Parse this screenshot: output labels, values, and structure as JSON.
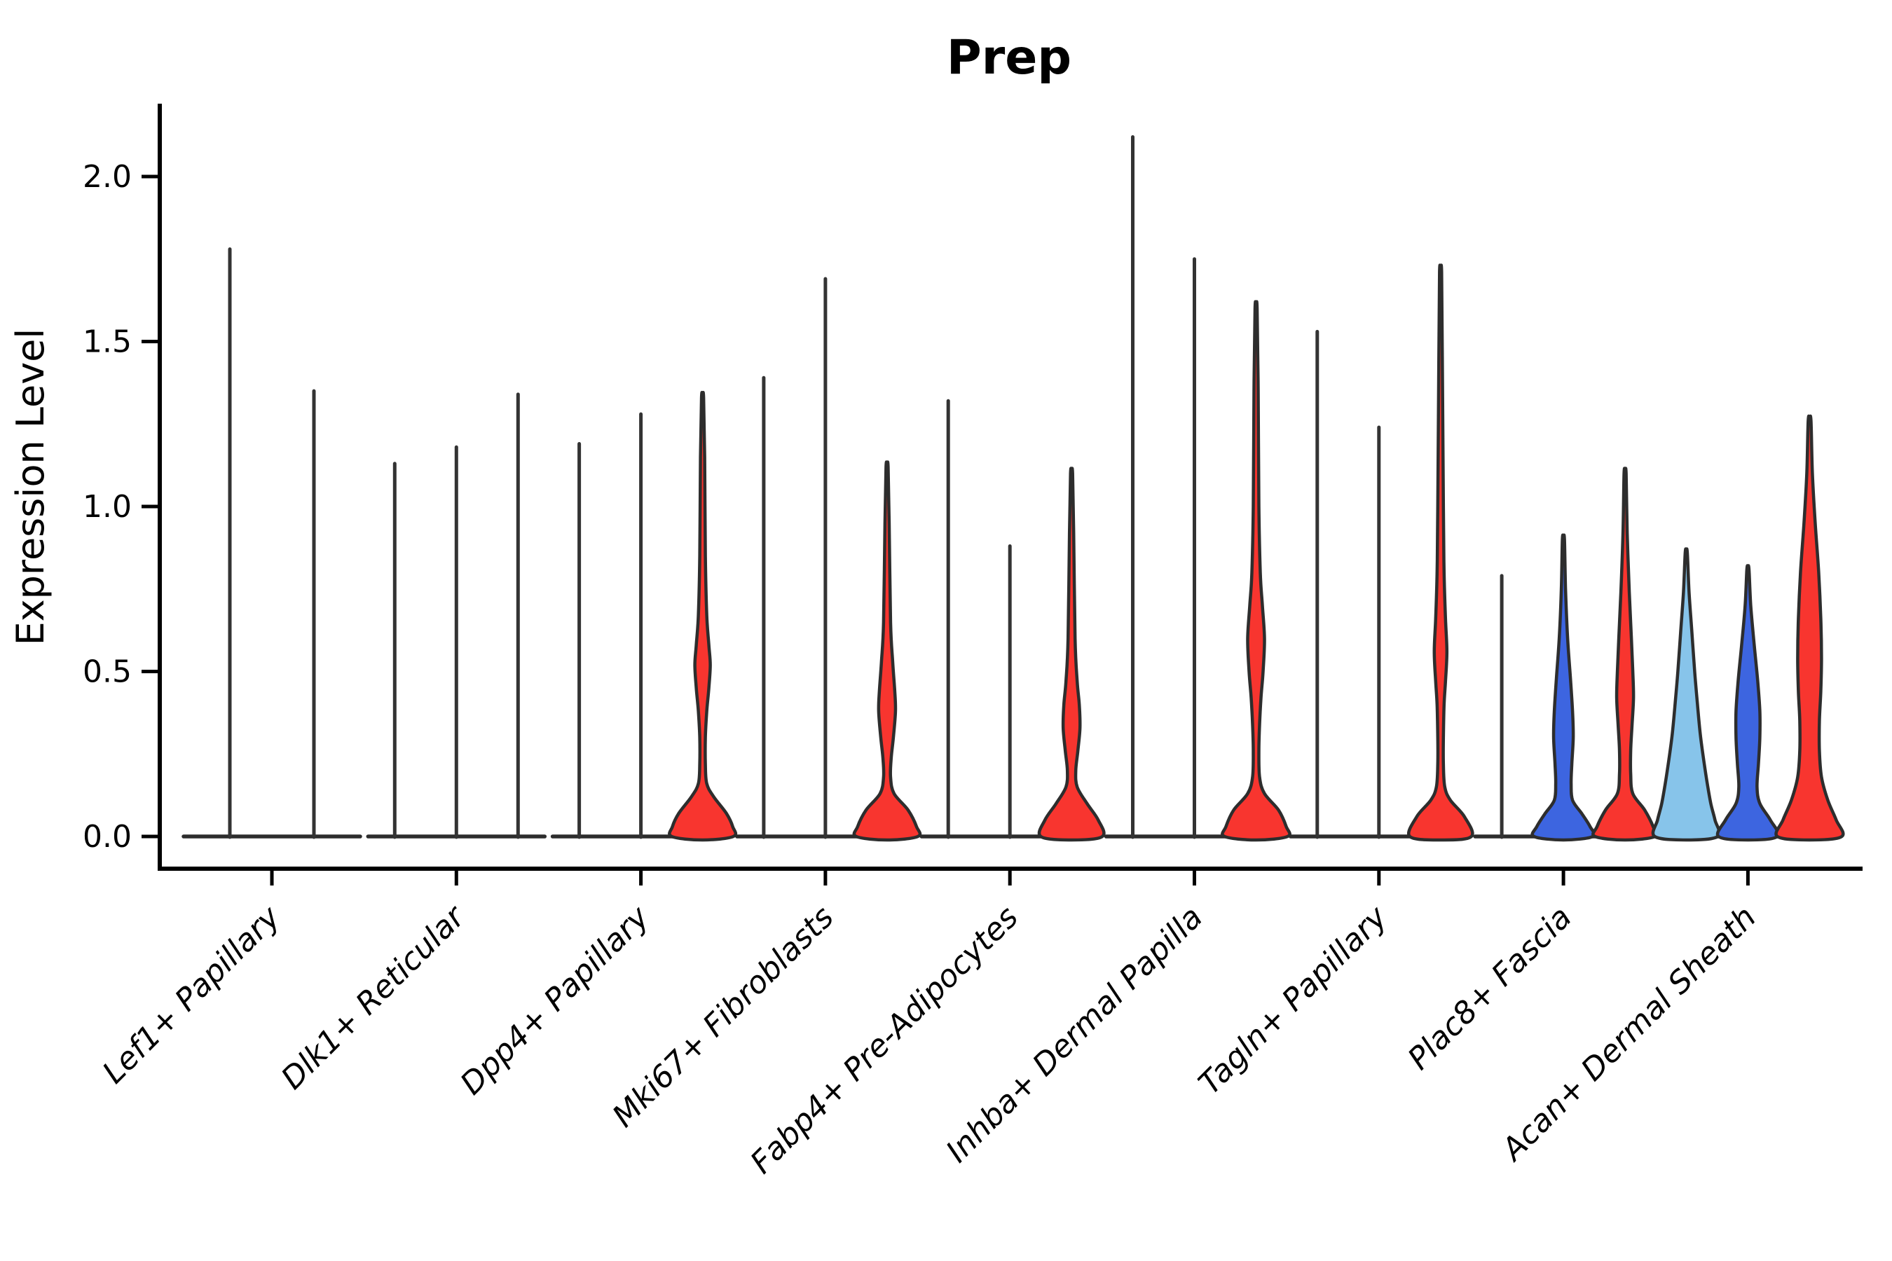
{
  "chart_data": {
    "type": "violin",
    "title": "Prep",
    "ylabel": "Expression Level",
    "xlabel": "",
    "ylim": [
      -0.08,
      2.22
    ],
    "yticks": [
      0.0,
      0.5,
      1.0,
      1.5,
      2.0
    ],
    "ytick_labels": [
      "0.0",
      "0.5",
      "1.0",
      "1.5",
      "2.0"
    ],
    "grid": false,
    "legend_position": "none",
    "x_tick_label_rotation_deg": 45,
    "categories": [
      "Lef1+ Papillary",
      "Dlk1+ Reticular",
      "Dpp4+ Papillary",
      "Mki67+ Fibroblasts",
      "Fabp4+ Pre-Adipocytes",
      "Inhba+ Dermal Papilla",
      "Tagln+ Papillary",
      "Plac8+ Fascia",
      "Acan+ Dermal Sheath"
    ],
    "colors": {
      "red": "#F8352F",
      "blue": "#3D65E0",
      "lightblue": "#87C4EA",
      "spike": "#333333",
      "outline": "#2D2D2D",
      "axis": "#000000",
      "text": "#000000",
      "background": "#ffffff"
    },
    "groups": [
      {
        "category": "Lef1+ Papillary",
        "violins": [
          {
            "split": 1,
            "type": "spike",
            "color": "spike",
            "max": 1.78
          },
          {
            "split": 2,
            "type": "spike",
            "color": "spike",
            "max": 1.35
          }
        ]
      },
      {
        "category": "Dlk1+ Reticular",
        "violins": [
          {
            "split": 1,
            "type": "spike",
            "color": "spike",
            "max": 1.13
          },
          {
            "split": 2,
            "type": "spike",
            "color": "spike",
            "max": 1.18
          },
          {
            "split": 3,
            "type": "spike",
            "color": "spike",
            "max": 1.34
          }
        ]
      },
      {
        "category": "Dpp4+ Papillary",
        "violins": [
          {
            "split": 1,
            "type": "spike",
            "color": "spike",
            "max": 1.19
          },
          {
            "split": 2,
            "type": "spike",
            "color": "spike",
            "max": 1.28
          },
          {
            "split": 3,
            "type": "violin",
            "color": "red",
            "max": 1.33,
            "profile": [
              [
                1.33,
                1.5
              ],
              [
                1.15,
                3
              ],
              [
                0.85,
                4
              ],
              [
                0.67,
                6
              ],
              [
                0.58,
                9
              ],
              [
                0.52,
                11
              ],
              [
                0.45,
                9
              ],
              [
                0.38,
                6
              ],
              [
                0.3,
                4
              ],
              [
                0.22,
                4
              ],
              [
                0.16,
                6
              ],
              [
                0.12,
                16
              ],
              [
                0.07,
                34
              ],
              [
                0.03,
                43
              ],
              [
                0,
                44
              ]
            ]
          }
        ]
      },
      {
        "category": "Mki67+ Fibroblasts",
        "violins": [
          {
            "split": 1,
            "type": "spike",
            "color": "spike",
            "max": 1.39
          },
          {
            "split": 2,
            "type": "spike",
            "color": "spike",
            "max": 1.69
          },
          {
            "split": 3,
            "type": "violin",
            "color": "red",
            "max": 1.12,
            "profile": [
              [
                1.12,
                1.5
              ],
              [
                0.95,
                3
              ],
              [
                0.65,
                5
              ],
              [
                0.53,
                8
              ],
              [
                0.44,
                11
              ],
              [
                0.38,
                12
              ],
              [
                0.3,
                9
              ],
              [
                0.24,
                6
              ],
              [
                0.18,
                5
              ],
              [
                0.13,
                10
              ],
              [
                0.08,
                30
              ],
              [
                0.03,
                42
              ],
              [
                0,
                44
              ]
            ]
          }
        ]
      },
      {
        "category": "Fabp4+ Pre-Adipocytes",
        "violins": [
          {
            "split": 1,
            "type": "spike",
            "color": "spike",
            "max": 1.32
          },
          {
            "split": 2,
            "type": "spike",
            "color": "spike",
            "max": 0.88
          },
          {
            "split": 3,
            "type": "violin",
            "color": "red",
            "max": 1.1,
            "profile": [
              [
                1.1,
                1.5
              ],
              [
                0.92,
                3
              ],
              [
                0.6,
                5
              ],
              [
                0.47,
                8
              ],
              [
                0.4,
                11
              ],
              [
                0.33,
                12
              ],
              [
                0.26,
                9
              ],
              [
                0.2,
                6
              ],
              [
                0.15,
                8
              ],
              [
                0.1,
                22
              ],
              [
                0.05,
                38
              ],
              [
                0,
                44
              ]
            ]
          }
        ]
      },
      {
        "category": "Inhba+ Dermal Papilla",
        "violins": [
          {
            "split": 1,
            "type": "spike",
            "color": "spike",
            "max": 2.12
          },
          {
            "split": 2,
            "type": "spike",
            "color": "spike",
            "max": 1.75
          },
          {
            "split": 3,
            "type": "violin",
            "color": "red",
            "max": 1.6,
            "profile": [
              [
                1.6,
                1.5
              ],
              [
                1.35,
                3
              ],
              [
                1.0,
                4
              ],
              [
                0.8,
                6
              ],
              [
                0.7,
                9
              ],
              [
                0.6,
                12
              ],
              [
                0.5,
                10
              ],
              [
                0.42,
                7
              ],
              [
                0.34,
                5
              ],
              [
                0.26,
                4
              ],
              [
                0.18,
                5
              ],
              [
                0.13,
                12
              ],
              [
                0.08,
                32
              ],
              [
                0.03,
                43
              ],
              [
                0,
                45
              ]
            ]
          }
        ]
      },
      {
        "category": "Tagln+ Papillary",
        "violins": [
          {
            "split": 1,
            "type": "spike",
            "color": "spike",
            "max": 1.53
          },
          {
            "split": 2,
            "type": "spike",
            "color": "spike",
            "max": 1.24
          },
          {
            "split": 3,
            "type": "violin",
            "color": "red",
            "max": 1.71,
            "profile": [
              [
                1.71,
                1.5
              ],
              [
                1.45,
                2.5
              ],
              [
                1.0,
                4
              ],
              [
                0.8,
                5
              ],
              [
                0.66,
                7
              ],
              [
                0.56,
                9
              ],
              [
                0.47,
                7
              ],
              [
                0.4,
                5
              ],
              [
                0.3,
                4
              ],
              [
                0.22,
                4
              ],
              [
                0.15,
                6
              ],
              [
                0.11,
                14
              ],
              [
                0.06,
                34
              ],
              [
                0,
                44
              ]
            ]
          }
        ]
      },
      {
        "category": "Plac8+ Fascia",
        "violins": [
          {
            "split": 1,
            "type": "spike",
            "color": "spike",
            "max": 0.79
          },
          {
            "split": 2,
            "type": "violin",
            "color": "blue",
            "max": 0.9,
            "profile": [
              [
                0.9,
                1.5
              ],
              [
                0.75,
                3
              ],
              [
                0.6,
                6
              ],
              [
                0.48,
                10
              ],
              [
                0.38,
                13
              ],
              [
                0.3,
                14
              ],
              [
                0.22,
                12
              ],
              [
                0.16,
                11
              ],
              [
                0.11,
                13
              ],
              [
                0.07,
                26
              ],
              [
                0.03,
                38
              ],
              [
                0,
                42
              ]
            ]
          },
          {
            "split": 3,
            "type": "violin",
            "color": "red",
            "max": 1.1,
            "profile": [
              [
                1.1,
                1.5
              ],
              [
                0.92,
                3
              ],
              [
                0.74,
                6
              ],
              [
                0.6,
                9
              ],
              [
                0.5,
                11
              ],
              [
                0.42,
                12
              ],
              [
                0.34,
                10
              ],
              [
                0.26,
                8
              ],
              [
                0.19,
                8
              ],
              [
                0.13,
                11
              ],
              [
                0.08,
                28
              ],
              [
                0.03,
                40
              ],
              [
                0,
                43
              ]
            ]
          }
        ]
      },
      {
        "category": "Acan+ Dermal Sheath",
        "violins": [
          {
            "split": 1,
            "type": "violin",
            "color": "lightblue",
            "max": 0.86,
            "profile": [
              [
                0.86,
                1.5
              ],
              [
                0.74,
                4
              ],
              [
                0.62,
                8
              ],
              [
                0.5,
                12
              ],
              [
                0.4,
                16
              ],
              [
                0.31,
                20
              ],
              [
                0.23,
                25
              ],
              [
                0.16,
                30
              ],
              [
                0.1,
                35
              ],
              [
                0.05,
                41
              ],
              [
                0,
                45
              ]
            ]
          },
          {
            "split": 2,
            "type": "violin",
            "color": "blue",
            "max": 0.81,
            "profile": [
              [
                0.81,
                1.5
              ],
              [
                0.7,
                4
              ],
              [
                0.58,
                9
              ],
              [
                0.47,
                14
              ],
              [
                0.38,
                17
              ],
              [
                0.3,
                17
              ],
              [
                0.22,
                15
              ],
              [
                0.15,
                13
              ],
              [
                0.1,
                17
              ],
              [
                0.05,
                32
              ],
              [
                0,
                42
              ]
            ]
          },
          {
            "split": 3,
            "type": "violin",
            "color": "red",
            "max": 1.26,
            "profile": [
              [
                1.26,
                2
              ],
              [
                1.1,
                4
              ],
              [
                0.95,
                8
              ],
              [
                0.8,
                13
              ],
              [
                0.66,
                16
              ],
              [
                0.54,
                17
              ],
              [
                0.44,
                16
              ],
              [
                0.35,
                14
              ],
              [
                0.26,
                14
              ],
              [
                0.18,
                17
              ],
              [
                0.11,
                26
              ],
              [
                0.05,
                38
              ],
              [
                0,
                46
              ]
            ]
          }
        ]
      }
    ]
  }
}
